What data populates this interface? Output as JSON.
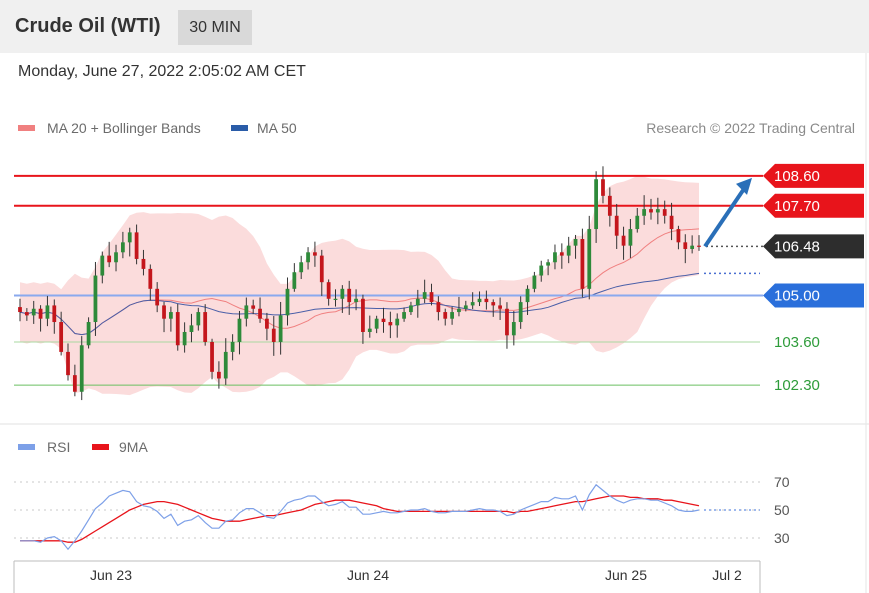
{
  "header": {
    "title": "Crude Oil (WTI)",
    "timeframe": "30 MIN",
    "datetime": "Monday, June 27, 2022 2:05:02 AM CET"
  },
  "legend": {
    "ma20": "MA 20 + Bollinger Bands",
    "ma50": "MA 50",
    "copyright": "Research © 2022 Trading Central",
    "rsi": "RSI",
    "rsi_ma": "9MA"
  },
  "colors": {
    "resistance": "#e8141b",
    "support": "#2a6fdb",
    "level_green": "#6abf60",
    "label_green": "#2e9c3a",
    "current": "#2d2d2d",
    "candle_up": "#2e8a3a",
    "candle_down": "#c4161c",
    "bollinger_fill": "#fbdcdc",
    "ma20": "#f08080",
    "ma50": "#4a5fa8",
    "rsi": "#7da0e8",
    "rsi_ma": "#e8141b",
    "arrow": "#2a6fb8"
  },
  "chart_data": [
    {
      "type": "candlestick",
      "title": "Crude Oil (WTI)",
      "x_ticks": [
        "Jun 23",
        "Jun 24",
        "Jun 25",
        "Jul 2"
      ],
      "ylim": [
        101.4,
        109.2
      ],
      "levels": [
        {
          "value": 108.6,
          "label": "108.60",
          "kind": "resistance"
        },
        {
          "value": 107.7,
          "label": "107.70",
          "kind": "resistance"
        },
        {
          "value": 106.48,
          "label": "106.48",
          "kind": "current"
        },
        {
          "value": 105.0,
          "label": "105.00",
          "kind": "support"
        },
        {
          "value": 103.6,
          "label": "103.60",
          "kind": "level"
        },
        {
          "value": 102.3,
          "label": "102.30",
          "kind": "level"
        }
      ],
      "target_arrow": {
        "from": 106.48,
        "to": 108.6
      },
      "closes": [
        104.5,
        104.4,
        104.6,
        104.3,
        104.7,
        104.2,
        103.3,
        102.6,
        102.1,
        103.5,
        104.2,
        105.6,
        106.2,
        106.0,
        106.3,
        106.6,
        106.9,
        106.1,
        105.8,
        105.2,
        104.7,
        104.3,
        104.5,
        103.5,
        103.9,
        104.1,
        104.5,
        103.6,
        102.7,
        102.5,
        103.3,
        103.6,
        104.3,
        104.7,
        104.6,
        104.3,
        104.0,
        103.6,
        104.4,
        105.2,
        105.7,
        106.0,
        106.3,
        106.2,
        105.4,
        104.9,
        104.9,
        105.2,
        104.8,
        104.9,
        103.9,
        104.0,
        104.3,
        104.2,
        104.1,
        104.3,
        104.5,
        104.7,
        104.9,
        105.1,
        104.8,
        104.5,
        104.3,
        104.5,
        104.6,
        104.7,
        104.8,
        104.9,
        104.8,
        104.7,
        104.6,
        103.8,
        104.2,
        104.8,
        105.2,
        105.6,
        105.9,
        106.0,
        106.3,
        106.2,
        106.5,
        106.7,
        105.2,
        107.0,
        108.5,
        108.0,
        107.4,
        106.8,
        106.5,
        107.0,
        107.4,
        107.6,
        107.5,
        107.6,
        107.4,
        107.0,
        106.6,
        106.4,
        106.5,
        106.48
      ],
      "indicators": [
        "MA 20 + Bollinger Bands",
        "MA 50"
      ]
    },
    {
      "type": "line",
      "series": [
        {
          "name": "RSI",
          "values": [
            28,
            28,
            28,
            27,
            30,
            31,
            28,
            22,
            28,
            35,
            43,
            51,
            55,
            60,
            62,
            64,
            63,
            56,
            53,
            52,
            49,
            44,
            47,
            39,
            42,
            43,
            46,
            41,
            37,
            37,
            42,
            43,
            48,
            51,
            51,
            48,
            45,
            44,
            49,
            55,
            57,
            58,
            60,
            60,
            56,
            53,
            54,
            56,
            52,
            52,
            47,
            47,
            48,
            49,
            48,
            48,
            49,
            50,
            50,
            51,
            49,
            48,
            48,
            49,
            49,
            49,
            50,
            51,
            50,
            50,
            49,
            46,
            47,
            50,
            52,
            54,
            56,
            56,
            59,
            58,
            58,
            60,
            50,
            61,
            68,
            64,
            60,
            57,
            55,
            57,
            58,
            58,
            57,
            57,
            55,
            53,
            50,
            49,
            49,
            50
          ]
        },
        {
          "name": "9MA",
          "values": [
            28,
            28,
            28,
            28,
            28,
            28,
            28,
            27,
            27,
            29,
            32,
            35,
            38,
            41,
            44,
            47,
            50,
            52,
            54,
            55,
            56,
            56,
            55,
            54,
            52,
            50,
            48,
            46,
            44,
            43,
            42,
            42,
            42,
            43,
            44,
            45,
            46,
            46,
            47,
            48,
            49,
            50,
            52,
            54,
            55,
            56,
            57,
            57,
            57,
            56,
            55,
            54,
            53,
            51,
            50,
            49,
            49,
            49,
            49,
            49,
            49,
            49,
            49,
            49,
            49,
            49,
            49,
            49,
            49,
            49,
            49,
            49,
            48,
            49,
            49,
            50,
            51,
            52,
            53,
            54,
            55,
            56,
            56,
            57,
            58,
            59,
            60,
            60,
            60,
            59,
            59,
            58,
            58,
            58,
            57,
            57,
            56,
            55,
            54,
            53
          ]
        }
      ],
      "y_ticks": [
        70,
        50,
        30
      ],
      "ylim": [
        20,
        80
      ]
    }
  ]
}
